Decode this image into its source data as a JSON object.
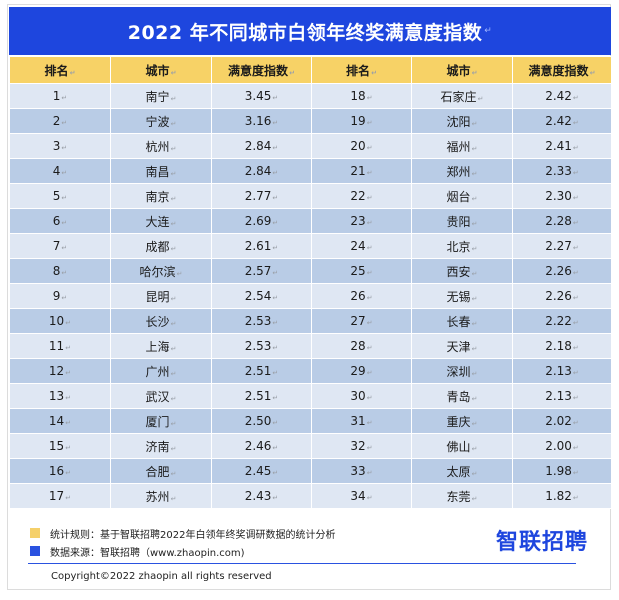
{
  "title": "2022 年不同城市白领年终奖满意度指数",
  "columns": [
    "排名",
    "城市",
    "满意度指数",
    "排名",
    "城市",
    "满意度指数"
  ],
  "rows": [
    {
      "r1": "1",
      "c1": "南宁",
      "v1": "3.45",
      "r2": "18",
      "c2": "石家庄",
      "v2": "2.42"
    },
    {
      "r1": "2",
      "c1": "宁波",
      "v1": "3.16",
      "r2": "19",
      "c2": "沈阳",
      "v2": "2.42"
    },
    {
      "r1": "3",
      "c1": "杭州",
      "v1": "2.84",
      "r2": "20",
      "c2": "福州",
      "v2": "2.41"
    },
    {
      "r1": "4",
      "c1": "南昌",
      "v1": "2.84",
      "r2": "21",
      "c2": "郑州",
      "v2": "2.33"
    },
    {
      "r1": "5",
      "c1": "南京",
      "v1": "2.77",
      "r2": "22",
      "c2": "烟台",
      "v2": "2.30"
    },
    {
      "r1": "6",
      "c1": "大连",
      "v1": "2.69",
      "r2": "23",
      "c2": "贵阳",
      "v2": "2.28"
    },
    {
      "r1": "7",
      "c1": "成都",
      "v1": "2.61",
      "r2": "24",
      "c2": "北京",
      "v2": "2.27"
    },
    {
      "r1": "8",
      "c1": "哈尔滨",
      "v1": "2.57",
      "r2": "25",
      "c2": "西安",
      "v2": "2.26"
    },
    {
      "r1": "9",
      "c1": "昆明",
      "v1": "2.54",
      "r2": "26",
      "c2": "无锡",
      "v2": "2.26"
    },
    {
      "r1": "10",
      "c1": "长沙",
      "v1": "2.53",
      "r2": "27",
      "c2": "长春",
      "v2": "2.22"
    },
    {
      "r1": "11",
      "c1": "上海",
      "v1": "2.53",
      "r2": "28",
      "c2": "天津",
      "v2": "2.18"
    },
    {
      "r1": "12",
      "c1": "广州",
      "v1": "2.51",
      "r2": "29",
      "c2": "深圳",
      "v2": "2.13"
    },
    {
      "r1": "13",
      "c1": "武汉",
      "v1": "2.51",
      "r2": "30",
      "c2": "青岛",
      "v2": "2.13"
    },
    {
      "r1": "14",
      "c1": "厦门",
      "v1": "2.50",
      "r2": "31",
      "c2": "重庆",
      "v2": "2.02"
    },
    {
      "r1": "15",
      "c1": "济南",
      "v1": "2.46",
      "r2": "32",
      "c2": "佛山",
      "v2": "2.00"
    },
    {
      "r1": "16",
      "c1": "合肥",
      "v1": "2.45",
      "r2": "33",
      "c2": "太原",
      "v2": "1.98"
    },
    {
      "r1": "17",
      "c1": "苏州",
      "v1": "2.43",
      "r2": "34",
      "c2": "东莞",
      "v2": "1.82"
    }
  ],
  "legend": {
    "rule": "统计规则：基于智联招聘2022年白领年终奖调研数据的统计分析",
    "source": "数据来源：智联招聘（www.zhaopin.com)"
  },
  "logo_text": "智联招聘",
  "copyright": "Copyright©2022 zhaopin all rights reserved",
  "colors": {
    "title_bg": "#1e46de",
    "header_bg": "#f7d266",
    "row_light": "#dfe7f3",
    "row_dark": "#b9cce6",
    "legend_yellow": "#f5d06a",
    "legend_blue": "#2a52e0"
  }
}
